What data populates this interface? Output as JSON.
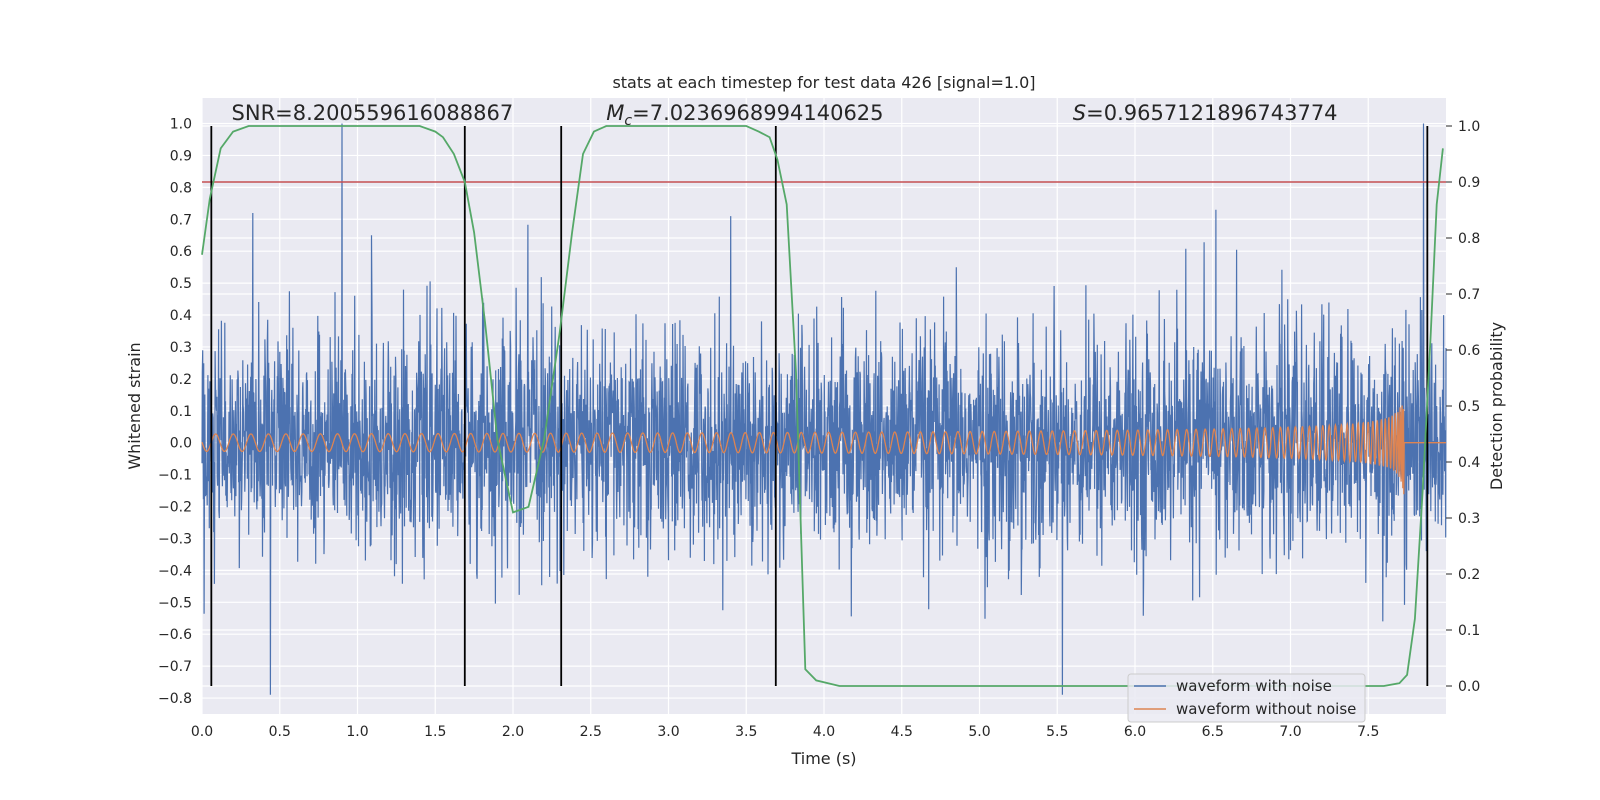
{
  "chart_data": {
    "type": "line",
    "title": "stats at each timestep for test data 426 [signal=1.0]",
    "xlabel": "Time (s)",
    "ylabel": "Whitened strain",
    "y2label": "Detection probability",
    "xlim": [
      0.0,
      8.0
    ],
    "ylim": [
      -0.85,
      1.08
    ],
    "y2lim": [
      -0.05,
      1.05
    ],
    "xticks": [
      "0.0",
      "0.5",
      "1.0",
      "1.5",
      "2.0",
      "2.5",
      "3.0",
      "3.5",
      "4.0",
      "4.5",
      "5.0",
      "5.5",
      "6.0",
      "6.5",
      "7.0",
      "7.5"
    ],
    "yticks": [
      "1.0",
      "0.9",
      "0.8",
      "0.7",
      "0.6",
      "0.5",
      "0.4",
      "0.3",
      "0.2",
      "0.1",
      "0.0",
      "−0.1",
      "−0.2",
      "−0.3",
      "−0.4",
      "−0.5",
      "−0.6",
      "−0.7",
      "−0.8"
    ],
    "y2ticks": [
      "1.0",
      "0.9",
      "0.8",
      "0.7",
      "0.6",
      "0.5",
      "0.4",
      "0.3",
      "0.2",
      "0.1",
      "0.0"
    ],
    "annotations": {
      "snr": "SNR=8.200559616088867",
      "mc_symbol": "M",
      "mc_sub": "c",
      "mc_value": "=7.0236968994140625",
      "s_symbol": "S",
      "s_value": "=0.9657121896743774"
    },
    "threshold": 0.9,
    "vertical_lines": [
      0.06,
      1.69,
      2.31,
      3.69,
      7.88
    ],
    "series": [
      {
        "name": "waveform with noise",
        "color": "#4c72b0",
        "noise_amplitude": 0.27,
        "peak_max": 1.0,
        "peak_min": -0.79
      },
      {
        "name": "waveform without noise",
        "color": "#dd8452",
        "merger_time": 7.73,
        "peak_amplitude": 0.18
      },
      {
        "name": "detection probability",
        "color": "#55a868",
        "x": [
          0.0,
          0.05,
          0.12,
          0.2,
          0.3,
          0.4,
          0.5,
          0.8,
          1.2,
          1.4,
          1.5,
          1.55,
          1.62,
          1.69,
          1.75,
          1.82,
          1.9,
          2.0,
          2.1,
          2.2,
          2.3,
          2.38,
          2.45,
          2.52,
          2.6,
          3.0,
          3.4,
          3.5,
          3.58,
          3.65,
          3.7,
          3.76,
          3.82,
          3.88,
          3.95,
          4.1,
          5.0,
          6.0,
          7.0,
          7.4,
          7.6,
          7.7,
          7.75,
          7.8,
          7.85,
          7.9,
          7.94,
          7.98
        ],
        "y": [
          0.77,
          0.87,
          0.96,
          0.99,
          1.0,
          1.0,
          1.0,
          1.0,
          1.0,
          1.0,
          0.99,
          0.98,
          0.95,
          0.9,
          0.81,
          0.65,
          0.44,
          0.31,
          0.32,
          0.44,
          0.63,
          0.81,
          0.95,
          0.99,
          1.0,
          1.0,
          1.0,
          1.0,
          0.99,
          0.98,
          0.94,
          0.86,
          0.56,
          0.03,
          0.01,
          0.0,
          0.0,
          0.0,
          0.0,
          0.0,
          0.0,
          0.005,
          0.02,
          0.12,
          0.35,
          0.62,
          0.86,
          0.96
        ]
      }
    ],
    "legend": [
      "waveform with noise",
      "waveform without noise"
    ],
    "legend_position": "lower right",
    "colors": {
      "background": "#eaeaf2",
      "grid": "#ffffff",
      "threshold": "#c44e52",
      "vlines": "#000000"
    }
  }
}
